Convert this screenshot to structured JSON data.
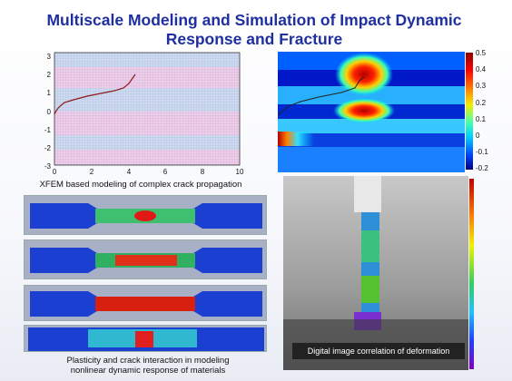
{
  "title_line1": "Multiscale Modeling and Simulation of Impact Dynamic",
  "title_line2": "Response and Fracture",
  "plot": {
    "x_ticks": [
      "0",
      "2",
      "4",
      "6",
      "8",
      "10"
    ],
    "y_ticks": [
      "3",
      "2",
      "1",
      "0",
      "-1",
      "-2",
      "-3"
    ],
    "caption": "XFEM based modeling of complex crack propagation"
  },
  "colorbar_top": {
    "ticks": [
      "0.5",
      "0.4",
      "0.3",
      "0.2",
      "0.1",
      "0",
      "-0.1",
      "-0.2"
    ]
  },
  "sim_caption_line1": "Plasticity and crack interaction in modeling",
  "sim_caption_line2": "nonlinear dynamic response of materials",
  "dic_caption": "Digital image correlation of deformation",
  "colors": {
    "title": "#1f2fa0",
    "crack": "#8b1a1a"
  }
}
